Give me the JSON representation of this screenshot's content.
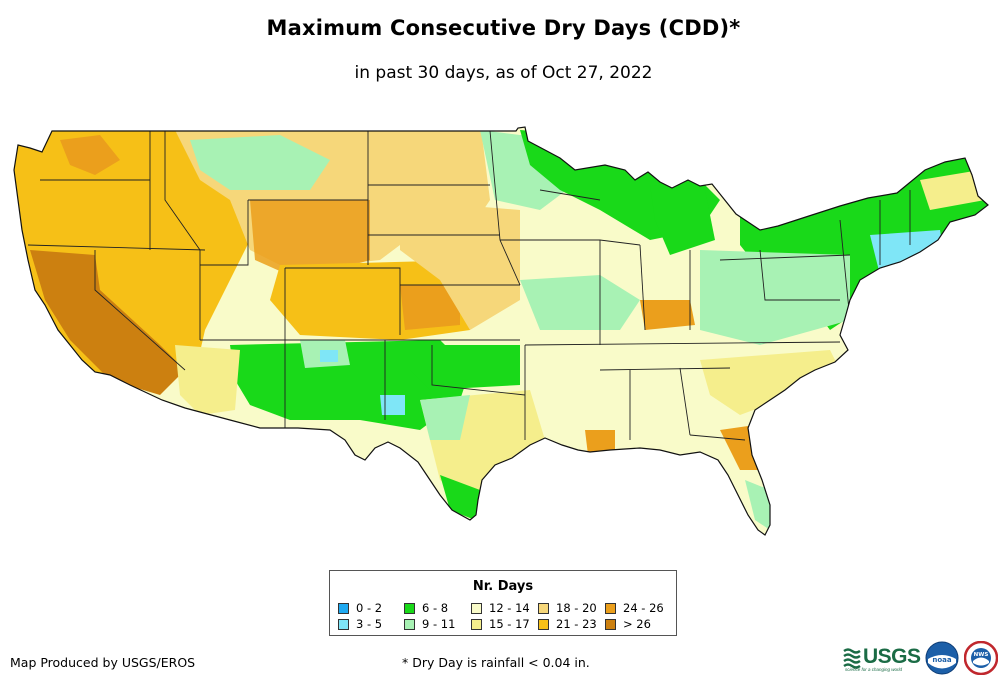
{
  "title": "Maximum Consecutive Dry Days (CDD)*",
  "subtitle": "in past 30 days, as of Oct 27, 2022",
  "legend": {
    "title": "Nr. Days",
    "items": [
      {
        "label": "0 - 2",
        "color": "#1fa9f0"
      },
      {
        "label": "3 - 5",
        "color": "#7fe6f7"
      },
      {
        "label": "6 - 8",
        "color": "#19d919"
      },
      {
        "label": "9 - 11",
        "color": "#a8f2b4"
      },
      {
        "label": "12 - 14",
        "color": "#f9fbc9"
      },
      {
        "label": "15 - 17",
        "color": "#f5ee8c"
      },
      {
        "label": "18 - 20",
        "color": "#f6d77a"
      },
      {
        "label": "21 - 23",
        "color": "#f6c017"
      },
      {
        "label": "24 - 26",
        "color": "#eb9f1c"
      },
      {
        "label": "> 26",
        "color": "#cc8010"
      }
    ]
  },
  "footer": {
    "producer": "Map Produced by USGS/EROS",
    "footnote": "* Dry Day is rainfall < 0.04 in."
  },
  "logos": {
    "usgs_text": "USGS",
    "usgs_tagline": "science for a changing world",
    "noaa_text": "noaa",
    "nws_text": "NWS"
  }
}
